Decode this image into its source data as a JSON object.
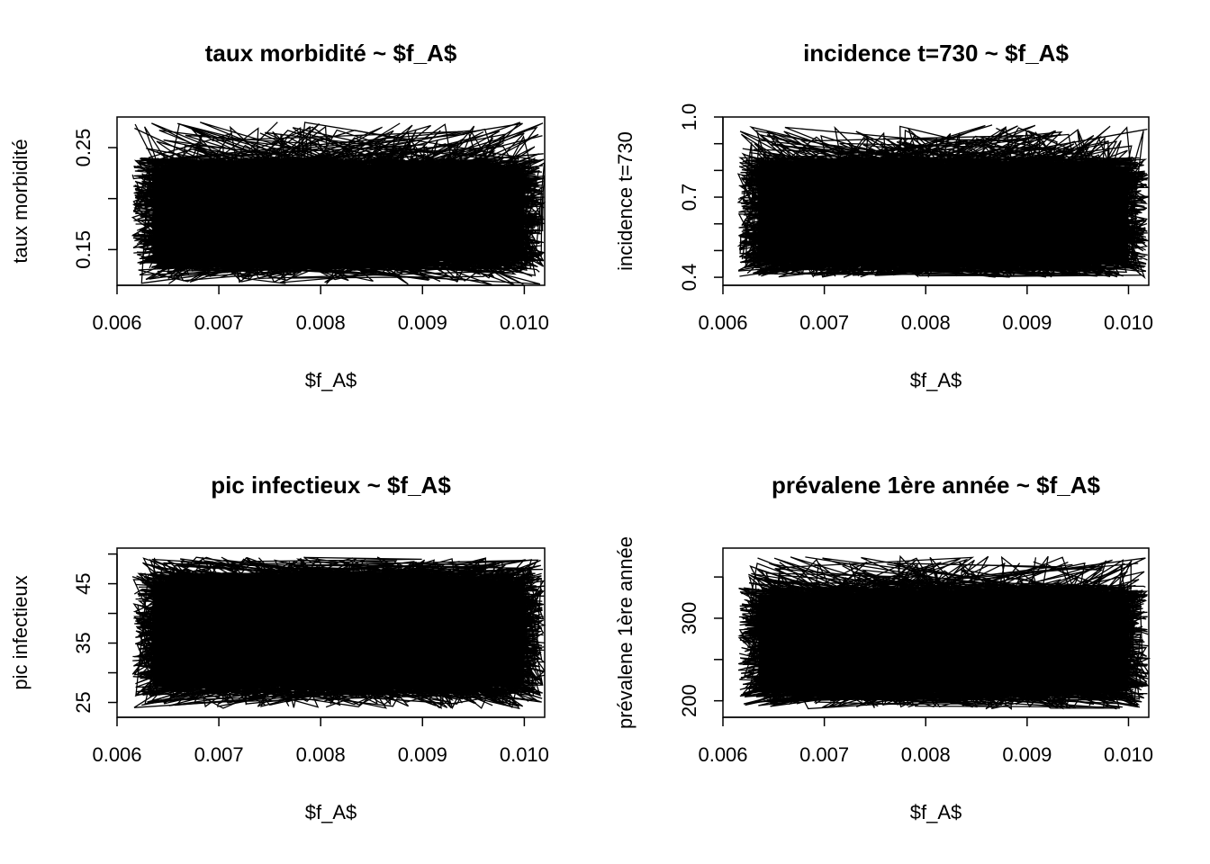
{
  "chart_data": [
    {
      "type": "line",
      "title": "taux morbidité ~ $f_A$",
      "xlabel": "$f_A$",
      "ylabel": "taux morbidité",
      "xlim": [
        0.006,
        0.0102
      ],
      "ylim": [
        0.115,
        0.28
      ],
      "x_ticks": [
        "0.006",
        "0.007",
        "0.008",
        "0.009",
        "0.010"
      ],
      "y_ticks": [
        "0.15",
        "0.25"
      ],
      "y_tick_values": [
        0.15,
        0.25
      ],
      "y_minor_ticks": [
        0.2
      ],
      "x_range": [
        0.00615,
        0.0102
      ],
      "band": [
        0.13,
        0.24
      ],
      "extremes": [
        0.115,
        0.275
      ],
      "grid": false,
      "series_note_count": 1
    },
    {
      "type": "line",
      "title": "incidence t=730 ~ $f_A$",
      "xlabel": "$f_A$",
      "ylabel": "incidence t=730",
      "xlim": [
        0.006,
        0.0102
      ],
      "ylim": [
        0.37,
        1.0
      ],
      "x_ticks": [
        "0.006",
        "0.007",
        "0.008",
        "0.009",
        "0.010"
      ],
      "y_ticks": [
        "0.4",
        "0.7",
        "1.0"
      ],
      "y_tick_values": [
        0.4,
        0.7,
        1.0
      ],
      "y_minor_ticks": [
        0.5,
        0.6,
        0.8,
        0.9
      ],
      "x_range": [
        0.00615,
        0.0102
      ],
      "band": [
        0.42,
        0.85
      ],
      "extremes": [
        0.4,
        0.97
      ],
      "grid": false,
      "series_note_count": 1
    },
    {
      "type": "line",
      "title": "pic infectieux ~ $f_A$",
      "xlabel": "$f_A$",
      "ylabel": "pic infectieux",
      "xlim": [
        0.006,
        0.0102
      ],
      "ylim": [
        22.5,
        51
      ],
      "x_ticks": [
        "0.006",
        "0.007",
        "0.008",
        "0.009",
        "0.010"
      ],
      "y_ticks": [
        "25",
        "35",
        "45"
      ],
      "y_tick_values": [
        25,
        35,
        45
      ],
      "y_minor_ticks": [
        30,
        40,
        50
      ],
      "x_range": [
        0.00615,
        0.0102
      ],
      "band": [
        26,
        47
      ],
      "extremes": [
        24,
        49.5
      ],
      "grid": false,
      "series_note_count": 1
    },
    {
      "type": "line",
      "title": "prévalene 1ère année ~ $f_A$",
      "xlabel": "$f_A$",
      "ylabel": "prévalene 1ère année",
      "xlim": [
        0.006,
        0.0102
      ],
      "ylim": [
        180,
        385
      ],
      "x_ticks": [
        "0.006",
        "0.007",
        "0.008",
        "0.009",
        "0.010"
      ],
      "y_ticks": [
        "200",
        "300"
      ],
      "y_tick_values": [
        200,
        300
      ],
      "y_minor_ticks": [
        250,
        350
      ],
      "x_range": [
        0.00615,
        0.0102
      ],
      "band": [
        200,
        340
      ],
      "extremes": [
        190,
        375
      ],
      "grid": false,
      "series_note_count": 1
    }
  ]
}
